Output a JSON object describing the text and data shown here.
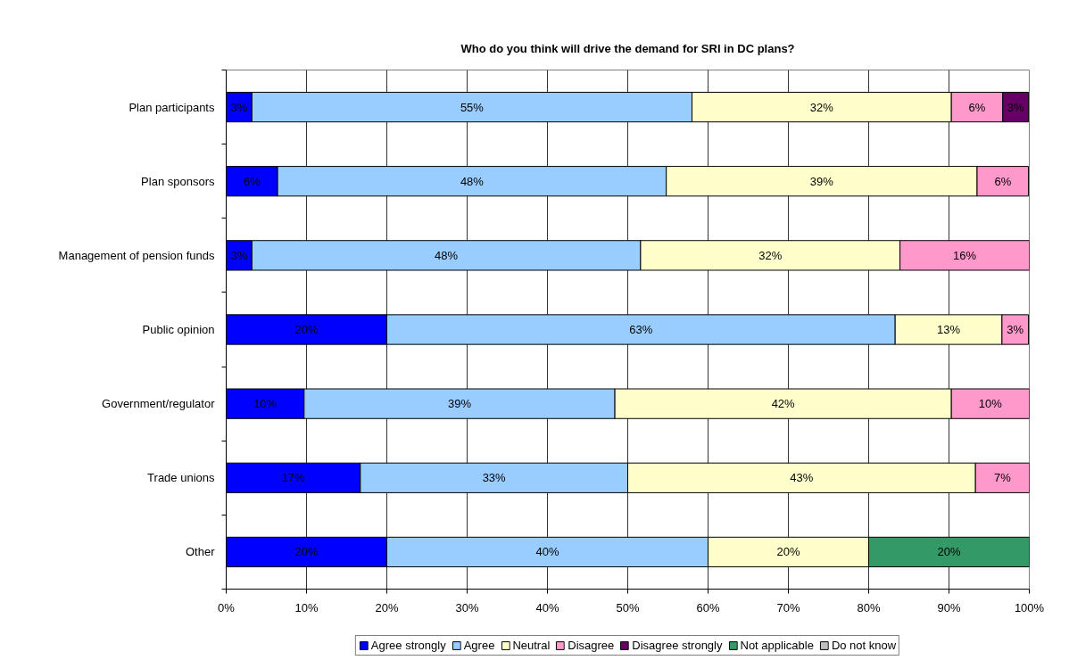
{
  "chart_data": {
    "type": "bar",
    "orientation": "horizontal",
    "stacked": true,
    "title": "Who do you think will drive the demand for SRI in DC plans?",
    "categories": [
      "Plan participants",
      "Plan sponsors",
      "Management of pension funds",
      "Public opinion",
      "Government/regulator",
      "Trade unions",
      "Other"
    ],
    "series": [
      {
        "name": "Agree strongly",
        "color": "#0000ff",
        "values": [
          3.2,
          6.4,
          3.2,
          20,
          9.7,
          16.7,
          20
        ],
        "value_labels": [
          "3%",
          "6%",
          "3%",
          "20%",
          "10%",
          "17%",
          "20%"
        ]
      },
      {
        "name": "Agree",
        "color": "#99ccff",
        "values": [
          54.8,
          48.4,
          48.4,
          63.3,
          38.7,
          33.3,
          40
        ],
        "value_labels": [
          "55%",
          "48%",
          "48%",
          "63%",
          "39%",
          "33%",
          "40%"
        ]
      },
      {
        "name": "Neutral",
        "color": "#ffffcc",
        "values": [
          32.3,
          38.7,
          32.3,
          13.3,
          41.9,
          43.3,
          20
        ],
        "value_labels": [
          "32%",
          "39%",
          "32%",
          "13%",
          "42%",
          "43%",
          "20%"
        ]
      },
      {
        "name": "Disagree",
        "color": "#ff99cc",
        "values": [
          6.4,
          6.4,
          16.1,
          3.3,
          9.7,
          6.7,
          null
        ],
        "value_labels": [
          "6%",
          "6%",
          "16%",
          "3%",
          "10%",
          "7%",
          null
        ]
      },
      {
        "name": "Disagree strongly",
        "color": "#660066",
        "values": [
          3.2,
          null,
          null,
          null,
          null,
          null,
          null
        ],
        "value_labels": [
          "3%",
          null,
          null,
          null,
          null,
          null,
          null
        ]
      },
      {
        "name": "Not applicable",
        "color": "#339966",
        "values": [
          null,
          null,
          null,
          null,
          null,
          null,
          20
        ],
        "value_labels": [
          null,
          null,
          null,
          null,
          null,
          null,
          "20%"
        ]
      },
      {
        "name": "Do not know",
        "color": "#c0c0c0",
        "values": [
          null,
          null,
          null,
          null,
          null,
          null,
          null
        ]
      }
    ],
    "xlim": [
      0,
      100
    ],
    "xticks": [
      {
        "value": 0,
        "label": "0%"
      },
      {
        "value": 10,
        "label": "10%"
      },
      {
        "value": 20,
        "label": "20%"
      },
      {
        "value": 30,
        "label": "30%"
      },
      {
        "value": 40,
        "label": "40%"
      },
      {
        "value": 50,
        "label": "50%"
      },
      {
        "value": 60,
        "label": "60%"
      },
      {
        "value": 70,
        "label": "70%"
      },
      {
        "value": 80,
        "label": "80%"
      },
      {
        "value": 90,
        "label": "90%"
      },
      {
        "value": 100,
        "label": "100%"
      }
    ],
    "grid": "x",
    "legend": "bottom"
  }
}
